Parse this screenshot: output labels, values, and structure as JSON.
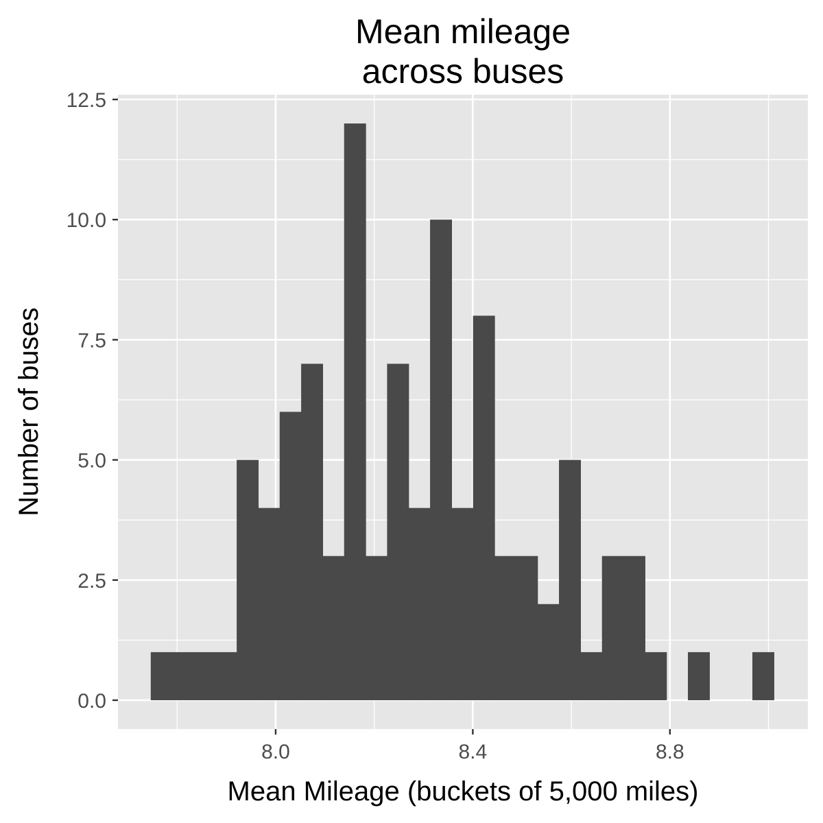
{
  "chart_data": {
    "type": "bar",
    "title": "Mean mileage\nacross buses",
    "xlabel": "Mean Mileage (buckets of 5,000 miles)",
    "ylabel": "Number of buses",
    "xlim": [
      7.68,
      9.08
    ],
    "ylim": [
      -0.6,
      12.6
    ],
    "x_ticks": [
      8.0,
      8.4,
      8.8
    ],
    "x_tick_labels": [
      "8.0",
      "8.4",
      "8.8"
    ],
    "y_ticks": [
      0,
      2.5,
      5,
      7.5,
      10,
      12.5
    ],
    "y_tick_labels": [
      "0.0",
      "2.5",
      "5.0",
      "7.5",
      "10.0",
      "12.5"
    ],
    "x_minor_ticks": [
      7.8,
      8.2,
      8.6,
      9.0
    ],
    "y_minor_ticks": [
      1.25,
      3.75,
      6.25,
      8.75,
      11.25
    ],
    "grid": true,
    "bin_width": 0.0436,
    "bins_start": 7.7465,
    "values": [
      1,
      1,
      1,
      1,
      5,
      4,
      6,
      7,
      3,
      12,
      3,
      7,
      4,
      10,
      4,
      8,
      3,
      3,
      2,
      5,
      1,
      3,
      3,
      1,
      0,
      1,
      0,
      0,
      1
    ],
    "colors": {
      "bar": "#494949",
      "panel": "#e6e6e6",
      "grid": "#ffffff",
      "tick": "#333333"
    }
  }
}
